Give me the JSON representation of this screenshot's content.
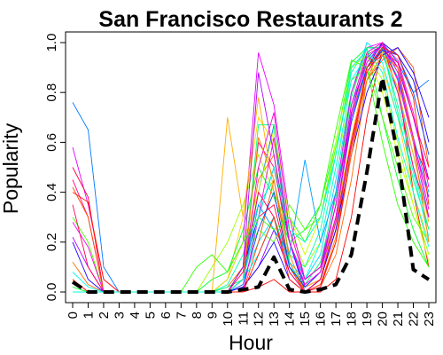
{
  "chart_data": {
    "type": "line",
    "title": "San Francisco Restaurants 2",
    "xlabel": "Hour",
    "ylabel": "Popularity",
    "x": [
      0,
      1,
      2,
      3,
      4,
      5,
      6,
      7,
      8,
      9,
      10,
      11,
      12,
      13,
      14,
      15,
      16,
      17,
      18,
      19,
      20,
      21,
      22,
      23
    ],
    "x_tick_labels": [
      "0",
      "1",
      "2",
      "3",
      "4",
      "5",
      "6",
      "7",
      "8",
      "9",
      "10",
      "11",
      "12",
      "13",
      "14",
      "15",
      "16",
      "17",
      "18",
      "19",
      "20",
      "21",
      "22",
      "23"
    ],
    "y_ticks": [
      0.0,
      0.2,
      0.4,
      0.6,
      0.8,
      1.0
    ],
    "y_tick_labels": [
      "0.0",
      "0.2",
      "0.4",
      "0.6",
      "0.8",
      "1.0"
    ],
    "xlim": [
      0,
      23
    ],
    "ylim": [
      0,
      1
    ],
    "mean_line": {
      "style": "dashed",
      "color": "#000000",
      "values": [
        0.04,
        0.0,
        0.0,
        0.0,
        0.0,
        0.0,
        0.0,
        0.0,
        0.0,
        0.0,
        0.0,
        0.01,
        0.02,
        0.14,
        0.01,
        0.0,
        0.01,
        0.03,
        0.15,
        0.48,
        0.86,
        0.55,
        0.09,
        0.05
      ]
    },
    "series": [
      {
        "color": "#ff0000",
        "values": [
          0.05,
          0.0,
          0.0,
          0.0,
          0.0,
          0.0,
          0.0,
          0.0,
          0.0,
          0.0,
          0.0,
          0.0,
          0.02,
          0.05,
          0.0,
          0.0,
          0.0,
          0.05,
          0.3,
          0.7,
          0.98,
          0.85,
          0.4,
          0.1
        ]
      },
      {
        "color": "#ff6a00",
        "values": [
          0.12,
          0.03,
          0.0,
          0.0,
          0.0,
          0.0,
          0.0,
          0.0,
          0.0,
          0.0,
          0.02,
          0.1,
          0.45,
          0.55,
          0.12,
          0.0,
          0.02,
          0.15,
          0.45,
          0.85,
          1.0,
          0.8,
          0.5,
          0.3
        ]
      },
      {
        "color": "#ffd000",
        "values": [
          0.0,
          0.0,
          0.0,
          0.0,
          0.0,
          0.0,
          0.0,
          0.0,
          0.0,
          0.0,
          0.05,
          0.3,
          0.7,
          0.6,
          0.25,
          0.05,
          0.1,
          0.3,
          0.7,
          0.95,
          0.9,
          0.7,
          0.4,
          0.2
        ]
      },
      {
        "color": "#9dff00",
        "values": [
          0.0,
          0.0,
          0.0,
          0.0,
          0.0,
          0.0,
          0.0,
          0.0,
          0.0,
          0.1,
          0.2,
          0.35,
          0.55,
          0.4,
          0.25,
          0.1,
          0.2,
          0.5,
          0.8,
          0.96,
          0.85,
          0.6,
          0.35,
          0.15
        ]
      },
      {
        "color": "#00ff2a",
        "values": [
          0.02,
          0.0,
          0.0,
          0.0,
          0.0,
          0.0,
          0.0,
          0.0,
          0.0,
          0.05,
          0.08,
          0.25,
          0.5,
          0.38,
          0.2,
          0.25,
          0.35,
          0.6,
          0.92,
          0.98,
          0.7,
          0.45,
          0.25,
          0.1
        ]
      },
      {
        "color": "#00ffb0",
        "values": [
          0.0,
          0.0,
          0.0,
          0.0,
          0.0,
          0.0,
          0.0,
          0.0,
          0.0,
          0.0,
          0.03,
          0.15,
          0.35,
          0.45,
          0.15,
          0.1,
          0.25,
          0.55,
          0.88,
          0.98,
          0.97,
          0.75,
          0.5,
          0.25
        ]
      },
      {
        "color": "#00d5ff",
        "values": [
          0.0,
          0.0,
          0.0,
          0.0,
          0.0,
          0.0,
          0.0,
          0.0,
          0.0,
          0.0,
          0.0,
          0.05,
          0.2,
          0.3,
          0.12,
          0.05,
          0.15,
          0.45,
          0.8,
          1.0,
          0.95,
          0.8,
          0.55,
          0.3
        ]
      },
      {
        "color": "#0077ff",
        "values": [
          0.76,
          0.65,
          0.1,
          0.0,
          0.0,
          0.0,
          0.0,
          0.0,
          0.0,
          0.0,
          0.0,
          0.05,
          0.4,
          0.67,
          0.2,
          0.05,
          0.1,
          0.35,
          0.75,
          0.92,
          1.0,
          0.92,
          0.8,
          0.85
        ]
      },
      {
        "color": "#2200ff",
        "values": [
          0.2,
          0.05,
          0.0,
          0.0,
          0.0,
          0.0,
          0.0,
          0.0,
          0.0,
          0.0,
          0.0,
          0.1,
          0.3,
          0.5,
          0.2,
          0.0,
          0.05,
          0.3,
          0.7,
          0.9,
          1.0,
          0.95,
          0.85,
          0.6
        ]
      },
      {
        "color": "#8f00ff",
        "values": [
          0.0,
          0.0,
          0.0,
          0.0,
          0.0,
          0.0,
          0.0,
          0.0,
          0.0,
          0.0,
          0.0,
          0.02,
          0.1,
          0.25,
          0.08,
          0.0,
          0.05,
          0.25,
          0.6,
          0.88,
          0.98,
          0.9,
          0.7,
          0.45
        ]
      },
      {
        "color": "#e600ff",
        "values": [
          0.58,
          0.35,
          0.05,
          0.0,
          0.0,
          0.0,
          0.0,
          0.0,
          0.0,
          0.0,
          0.05,
          0.2,
          0.96,
          0.75,
          0.3,
          0.05,
          0.1,
          0.4,
          0.8,
          0.98,
          1.0,
          0.85,
          0.6,
          0.3
        ]
      },
      {
        "color": "#ff0090",
        "values": [
          0.45,
          0.3,
          0.0,
          0.0,
          0.0,
          0.0,
          0.0,
          0.0,
          0.0,
          0.0,
          0.0,
          0.1,
          0.6,
          0.5,
          0.2,
          0.02,
          0.05,
          0.3,
          0.72,
          0.95,
          0.99,
          0.8,
          0.5,
          0.3
        ]
      },
      {
        "color": "#ff003c",
        "values": [
          0.5,
          0.38,
          0.0,
          0.0,
          0.0,
          0.0,
          0.0,
          0.0,
          0.0,
          0.0,
          0.0,
          0.05,
          0.3,
          0.35,
          0.1,
          0.0,
          0.02,
          0.2,
          0.55,
          0.9,
          0.95,
          0.9,
          0.6,
          0.45
        ]
      },
      {
        "color": "#ff4d00",
        "values": [
          0.42,
          0.3,
          0.0,
          0.0,
          0.0,
          0.0,
          0.0,
          0.0,
          0.0,
          0.0,
          0.0,
          0.0,
          0.2,
          0.45,
          0.1,
          0.0,
          0.05,
          0.25,
          0.62,
          0.85,
          0.93,
          0.98,
          0.9,
          0.5
        ]
      },
      {
        "color": "#ffae00",
        "values": [
          0.0,
          0.0,
          0.0,
          0.0,
          0.0,
          0.0,
          0.0,
          0.0,
          0.0,
          0.0,
          0.7,
          0.3,
          0.78,
          0.4,
          0.1,
          0.02,
          0.05,
          0.3,
          0.62,
          0.9,
          0.96,
          0.82,
          0.55,
          0.28
        ]
      },
      {
        "color": "#ccff00",
        "values": [
          0.0,
          0.0,
          0.0,
          0.0,
          0.0,
          0.0,
          0.0,
          0.0,
          0.0,
          0.0,
          0.05,
          0.2,
          0.4,
          0.65,
          0.3,
          0.15,
          0.3,
          0.6,
          0.9,
          0.95,
          0.8,
          0.55,
          0.35,
          0.12
        ]
      },
      {
        "color": "#4dff00",
        "values": [
          0.3,
          0.2,
          0.0,
          0.0,
          0.0,
          0.0,
          0.0,
          0.0,
          0.0,
          0.0,
          0.0,
          0.1,
          0.25,
          0.2,
          0.35,
          0.25,
          0.3,
          0.58,
          0.85,
          0.9,
          0.7,
          0.5,
          0.3,
          0.2
        ]
      },
      {
        "color": "#00ff73",
        "values": [
          0.0,
          0.0,
          0.0,
          0.0,
          0.0,
          0.0,
          0.0,
          0.0,
          0.0,
          0.0,
          0.02,
          0.05,
          0.67,
          0.67,
          0.1,
          0.03,
          0.12,
          0.38,
          0.78,
          0.98,
          0.98,
          0.72,
          0.45,
          0.25
        ]
      },
      {
        "color": "#00fff0",
        "values": [
          0.08,
          0.02,
          0.0,
          0.0,
          0.0,
          0.0,
          0.0,
          0.0,
          0.0,
          0.0,
          0.0,
          0.05,
          0.15,
          0.3,
          0.1,
          0.05,
          0.2,
          0.5,
          0.85,
          0.95,
          0.92,
          0.7,
          0.48,
          0.22
        ]
      },
      {
        "color": "#009dff",
        "values": [
          0.0,
          0.0,
          0.0,
          0.0,
          0.0,
          0.0,
          0.0,
          0.0,
          0.0,
          0.0,
          0.0,
          0.05,
          0.35,
          0.25,
          0.15,
          0.53,
          0.2,
          0.4,
          0.7,
          0.9,
          0.98,
          0.86,
          0.62,
          0.4
        ]
      },
      {
        "color": "#1a00ff",
        "values": [
          0.0,
          0.0,
          0.0,
          0.0,
          0.0,
          0.0,
          0.0,
          0.0,
          0.0,
          0.0,
          0.0,
          0.02,
          0.1,
          0.2,
          0.05,
          0.0,
          0.05,
          0.25,
          0.55,
          0.8,
          0.95,
          0.98,
          0.88,
          0.7
        ]
      },
      {
        "color": "#b300ff",
        "values": [
          0.22,
          0.1,
          0.0,
          0.0,
          0.0,
          0.0,
          0.0,
          0.0,
          0.0,
          0.0,
          0.0,
          0.1,
          0.88,
          0.55,
          0.2,
          0.02,
          0.08,
          0.35,
          0.72,
          0.94,
          0.99,
          0.88,
          0.6,
          0.38
        ]
      },
      {
        "color": "#ff00c8",
        "values": [
          0.0,
          0.0,
          0.0,
          0.0,
          0.0,
          0.0,
          0.0,
          0.0,
          0.0,
          0.0,
          0.0,
          0.05,
          0.5,
          0.72,
          0.25,
          0.05,
          0.1,
          0.35,
          0.75,
          0.96,
          1.0,
          0.9,
          0.62,
          0.33
        ]
      },
      {
        "color": "#ff0055",
        "values": [
          0.35,
          0.1,
          0.0,
          0.0,
          0.0,
          0.0,
          0.0,
          0.0,
          0.0,
          0.0,
          0.0,
          0.08,
          0.4,
          0.3,
          0.08,
          0.0,
          0.05,
          0.28,
          0.6,
          0.88,
          0.97,
          0.92,
          0.7,
          0.5
        ]
      },
      {
        "color": "#ff8000",
        "values": [
          0.0,
          0.0,
          0.0,
          0.0,
          0.0,
          0.0,
          0.0,
          0.0,
          0.0,
          0.0,
          0.0,
          0.05,
          0.62,
          0.45,
          0.15,
          0.0,
          0.03,
          0.22,
          0.55,
          0.85,
          0.95,
          0.9,
          0.6,
          0.2
        ]
      },
      {
        "color": "#33ff00",
        "values": [
          0.0,
          0.0,
          0.0,
          0.0,
          0.0,
          0.0,
          0.0,
          0.0,
          0.1,
          0.15,
          0.08,
          0.2,
          0.3,
          0.25,
          0.3,
          0.2,
          0.35,
          0.65,
          0.93,
          0.9,
          0.6,
          0.35,
          0.2,
          0.1
        ]
      },
      {
        "color": "#0044ff",
        "values": [
          0.0,
          0.0,
          0.0,
          0.0,
          0.0,
          0.0,
          0.0,
          0.0,
          0.0,
          0.0,
          0.0,
          0.03,
          0.25,
          0.4,
          0.1,
          0.02,
          0.08,
          0.3,
          0.68,
          0.9,
          0.97,
          0.95,
          0.8,
          0.55
        ]
      },
      {
        "color": "#ff00ee",
        "values": [
          0.28,
          0.18,
          0.0,
          0.0,
          0.0,
          0.0,
          0.0,
          0.0,
          0.0,
          0.0,
          0.0,
          0.0,
          0.3,
          0.62,
          0.2,
          0.03,
          0.08,
          0.3,
          0.7,
          0.92,
          0.99,
          0.93,
          0.72,
          0.42
        ]
      },
      {
        "color": "#ff2200",
        "values": [
          0.4,
          0.36,
          0.05,
          0.0,
          0.0,
          0.0,
          0.0,
          0.0,
          0.0,
          0.0,
          0.0,
          0.0,
          0.15,
          0.3,
          0.05,
          0.0,
          0.03,
          0.2,
          0.58,
          0.9,
          0.98,
          0.95,
          0.78,
          0.35
        ]
      },
      {
        "color": "#00ffd0",
        "values": [
          0.0,
          0.0,
          0.0,
          0.0,
          0.0,
          0.0,
          0.0,
          0.0,
          0.0,
          0.0,
          0.0,
          0.05,
          0.3,
          0.5,
          0.25,
          0.2,
          0.3,
          0.55,
          0.9,
          0.97,
          0.88,
          0.62,
          0.4,
          0.18
        ]
      }
    ]
  }
}
